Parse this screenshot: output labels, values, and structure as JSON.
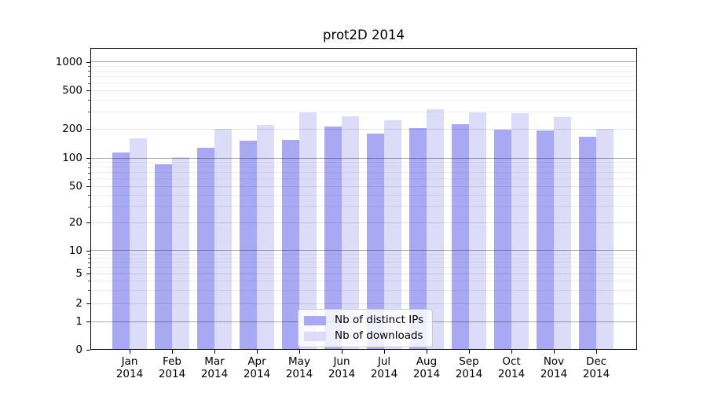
{
  "title": "prot2D 2014",
  "chart_data": {
    "type": "bar",
    "title": "prot2D 2014",
    "categories": [
      "Jan",
      "Feb",
      "Mar",
      "Apr",
      "May",
      "Jun",
      "Jul",
      "Aug",
      "Sep",
      "Oct",
      "Nov",
      "Dec"
    ],
    "x_year_line": "2014",
    "series": [
      {
        "name": "Nb of distinct IPs",
        "color": "#a9a9f3",
        "values": [
          115,
          86,
          130,
          154,
          156,
          216,
          181,
          207,
          225,
          199,
          195,
          167
        ]
      },
      {
        "name": "Nb of downloads",
        "color": "#dcdcf9",
        "values": [
          163,
          103,
          202,
          221,
          298,
          274,
          251,
          323,
          301,
          292,
          268,
          201
        ]
      }
    ],
    "y_axis": {
      "scale": "symlog",
      "labeled_ticks": [
        0,
        1,
        2,
        5,
        10,
        20,
        50,
        100,
        200,
        500,
        1000
      ],
      "major_ticks": [
        1,
        10,
        100,
        1000
      ],
      "minor_ticks": [
        3,
        4,
        6,
        7,
        8,
        9,
        30,
        40,
        60,
        70,
        80,
        90,
        300,
        400,
        600,
        700,
        800,
        900
      ],
      "ylim": [
        0,
        1200
      ]
    },
    "grid": "on",
    "legend": {
      "position": "lower-center",
      "entries": [
        "Nb of distinct IPs",
        "Nb of downloads"
      ]
    }
  }
}
